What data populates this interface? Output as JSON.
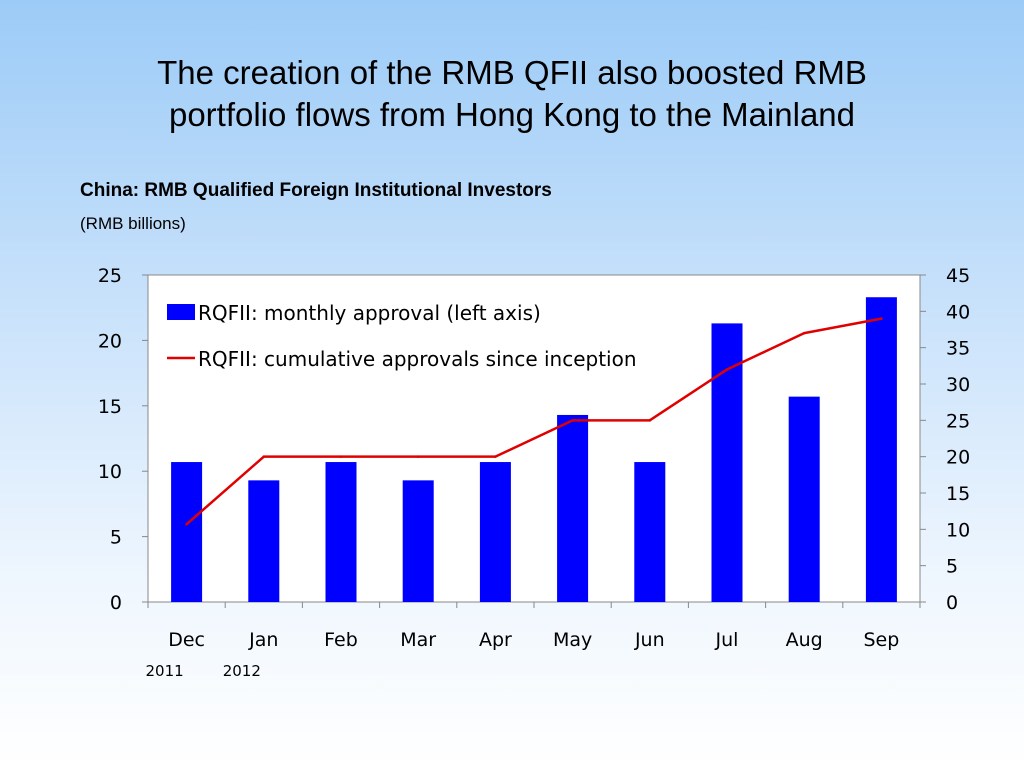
{
  "slide": {
    "title_line1": "The creation of the RMB QFII also boosted RMB",
    "title_line2": "portfolio flows from Hong Kong to the Mainland"
  },
  "chart_data": {
    "type": "bar",
    "title": "China: RMB Qualified Foreign Institutional Investors",
    "subtitle": "(RMB billions)",
    "categories": [
      "Dec",
      "Jan",
      "Feb",
      "Mar",
      "Apr",
      "May",
      "Jun",
      "Jul",
      "Aug",
      "Sep"
    ],
    "year_labels": [
      {
        "category_index": 0,
        "text": "2011"
      },
      {
        "category_index": 1,
        "text": "2012"
      }
    ],
    "series": [
      {
        "name": "RQFII: monthly approval (left axis)",
        "type": "bar",
        "axis": "left",
        "color": "#0000ff",
        "values": [
          10.7,
          9.3,
          10.7,
          9.3,
          10.7,
          14.3,
          10.7,
          21.3,
          15.7,
          23.3
        ]
      },
      {
        "name": "RQFII: cumulative approvals since inception",
        "type": "line",
        "axis": "right",
        "color": "#e00000",
        "values": [
          10.7,
          20,
          20,
          20,
          20,
          25,
          25,
          32,
          37,
          39
        ]
      }
    ],
    "y_left": {
      "min": 0,
      "max": 25,
      "ticks": [
        0,
        5,
        10,
        15,
        20,
        25
      ]
    },
    "y_right": {
      "min": 0,
      "max": 45,
      "ticks": [
        0,
        5,
        10,
        15,
        20,
        25,
        30,
        35,
        40,
        45
      ]
    },
    "grid": false,
    "legend": "top-left"
  }
}
